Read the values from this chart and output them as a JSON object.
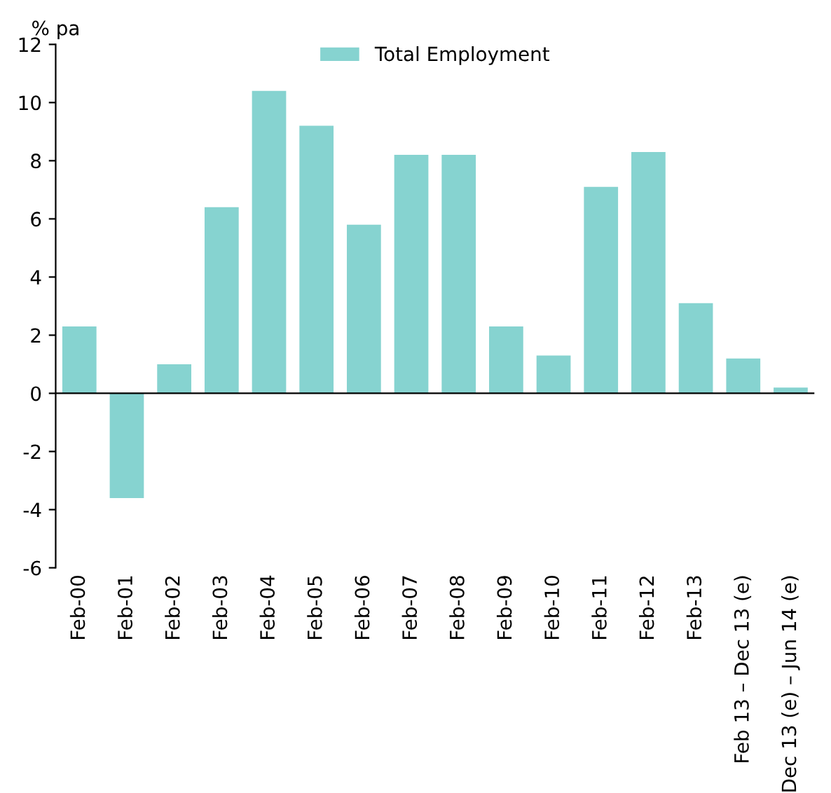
{
  "chart_data": {
    "type": "bar",
    "ylabel": "% pa",
    "categories": [
      "Feb-00",
      "Feb-01",
      "Feb-02",
      "Feb-03",
      "Feb-04",
      "Feb-05",
      "Feb-06",
      "Feb-07",
      "Feb-08",
      "Feb-09",
      "Feb-10",
      "Feb-11",
      "Feb-12",
      "Feb-13",
      "Feb 13 – Dec 13 (e)",
      "Dec 13 (e) – Jun 14 (e)"
    ],
    "series": [
      {
        "name": "Total Employment",
        "color": "#86d3d0",
        "values": [
          2.3,
          -3.6,
          1.0,
          6.4,
          10.4,
          9.2,
          5.8,
          8.2,
          8.2,
          2.3,
          1.3,
          7.1,
          8.3,
          3.1,
          1.2,
          0.2
        ]
      }
    ],
    "ylim": [
      -6,
      12
    ],
    "yticks": [
      -6,
      -4,
      -2,
      0,
      2,
      4,
      6,
      8,
      10,
      12
    ],
    "grid": false,
    "legend": "top",
    "ref_lines": [
      {
        "axis": "y",
        "value": 0,
        "color": "#000000",
        "line_style": "solid"
      }
    ]
  }
}
